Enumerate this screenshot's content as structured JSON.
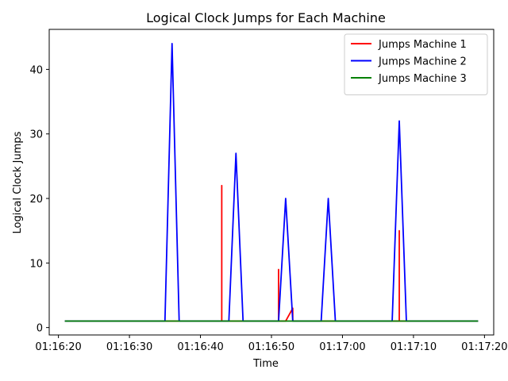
{
  "chart_data": {
    "type": "line",
    "title": "Logical Clock Jumps for Each Machine",
    "xlabel": "Time",
    "ylabel": "Logical Clock Jumps",
    "x_ticks": [
      "01:16:20",
      "01:16:30",
      "01:16:40",
      "01:16:50",
      "01:17:00",
      "01:17:10",
      "01:17:20"
    ],
    "y_ticks": [
      0,
      10,
      20,
      30,
      40
    ],
    "xlim": [
      "01:16:18.7",
      "01:17:21.3"
    ],
    "ylim": [
      -1.15,
      46.2
    ],
    "grid": false,
    "legend_position": "top-right",
    "series": [
      {
        "name": "Jumps Machine 1",
        "color": "#ff0000",
        "points": [
          [
            "01:16:21",
            1
          ],
          [
            "01:16:43",
            1
          ],
          [
            "01:16:43",
            22
          ],
          [
            "01:16:43",
            1
          ],
          [
            "01:16:51",
            1
          ],
          [
            "01:16:51",
            9
          ],
          [
            "01:16:51",
            1
          ],
          [
            "01:16:52",
            1
          ],
          [
            "01:16:53",
            3
          ],
          [
            "01:16:53",
            1
          ],
          [
            "01:17:08",
            1
          ],
          [
            "01:17:08",
            15
          ],
          [
            "01:17:08",
            1
          ],
          [
            "01:17:19",
            1
          ]
        ]
      },
      {
        "name": "Jumps Machine 2",
        "color": "#0000ff",
        "points": [
          [
            "01:16:21",
            1
          ],
          [
            "01:16:35",
            1
          ],
          [
            "01:16:36",
            44
          ],
          [
            "01:16:37",
            1
          ],
          [
            "01:16:44",
            1
          ],
          [
            "01:16:45",
            27
          ],
          [
            "01:16:46",
            1
          ],
          [
            "01:16:51",
            1
          ],
          [
            "01:16:52",
            20
          ],
          [
            "01:16:53",
            1
          ],
          [
            "01:16:57",
            1
          ],
          [
            "01:16:58",
            20
          ],
          [
            "01:16:59",
            1
          ],
          [
            "01:17:07",
            1
          ],
          [
            "01:17:08",
            32
          ],
          [
            "01:17:09",
            1
          ],
          [
            "01:17:19",
            1
          ]
        ]
      },
      {
        "name": "Jumps Machine 3",
        "color": "#008000",
        "points": [
          [
            "01:16:21",
            1
          ],
          [
            "01:17:19",
            1
          ]
        ]
      }
    ]
  }
}
